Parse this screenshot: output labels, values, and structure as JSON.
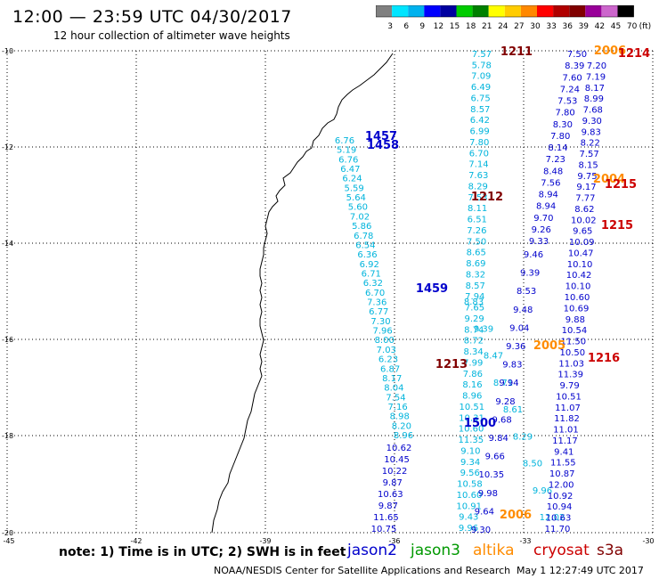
{
  "header": {
    "title": "12:00  —  23:59  UTC  04/30/2017",
    "subtitle": "12 hour collection of altimeter wave heights"
  },
  "colorbar": {
    "labels": [
      "3",
      "6",
      "9",
      "12",
      "15",
      "18",
      "21",
      "24",
      "27",
      "30",
      "33",
      "36",
      "39",
      "42",
      "45",
      "70",
      "(ft)"
    ],
    "colors": [
      "#808080",
      "#00e5ff",
      "#00b2ee",
      "#0000ff",
      "#0000a0",
      "#00cc00",
      "#008000",
      "#ffff00",
      "#ffcc00",
      "#ff8800",
      "#ff0000",
      "#b00000",
      "#800000",
      "#990099",
      "#cc66cc",
      "#000000"
    ]
  },
  "map": {
    "lon_ticks": [
      "-45",
      "-42",
      "-39",
      "-36",
      "-33",
      "-30"
    ],
    "lat_ticks": [
      "-10",
      "-12",
      "-14",
      "-16",
      "-18",
      "-20"
    ]
  },
  "tracks": [
    {
      "color": "#00b4dc",
      "values": [
        "7.57",
        "5.78",
        "7.09",
        "6.49",
        "6.75",
        "8.57",
        "6.42",
        "6.99",
        "7.80",
        "6.70",
        "7.14",
        "7.63",
        "8.29",
        "7.53",
        "8.11",
        "6.51",
        "7.26",
        "7.50",
        "8.65",
        "8.69",
        "8.32",
        "8.57",
        "7.94",
        "7.65",
        "9.29",
        "8.74",
        "8.72",
        "8.34",
        "7.99",
        "7.86",
        "8.16",
        "8.96",
        "10.51",
        "10.31",
        "10.60",
        "11.35",
        "9.10",
        "9.34",
        "9.56",
        "10.58",
        "10.60",
        "10.91",
        "9.43",
        "9.96"
      ]
    },
    {
      "color": "#00b4dc",
      "values": [
        "6.76",
        "5.19",
        "6.76",
        "6.47",
        "6.24",
        "5.59",
        "5.64",
        "5.60",
        "7.02",
        "5.86",
        "6.78",
        "6.54",
        "6.36",
        "6.92",
        "6.71",
        "6.32",
        "6.70",
        "7.36",
        "6.77",
        "7.30",
        "7.96",
        "8.00",
        "7.03",
        "6.23",
        "6.87",
        "8.17",
        "8.04",
        "7.54",
        "7.16",
        "8.98",
        "8.20",
        "8.96"
      ]
    },
    {
      "color": "#00b4dc",
      "values": [
        "8.83",
        "9.39",
        "8.47",
        "8.71",
        "8.61",
        "8.29",
        "8.50",
        "9.96",
        "12.02"
      ]
    },
    {
      "color": "#0000cc",
      "values": [
        "9.46",
        "9.39",
        "8.53",
        "9.48",
        "9.04",
        "9.36",
        "9.83",
        "9.94",
        "9.28",
        "9.68",
        "9.84",
        "9.66",
        "10.35",
        "9.98",
        "9.64",
        "9.30"
      ]
    },
    {
      "color": "#0000cc",
      "values": [
        "10.62",
        "10.45",
        "10.22",
        "9.87",
        "10.63",
        "9.87",
        "11.65",
        "10.75"
      ]
    },
    {
      "color": "#0000cc",
      "values": [
        "7.50",
        "8.39",
        "7.60",
        "7.24",
        "7.53",
        "7.80",
        "8.30",
        "7.80",
        "8.14",
        "7.23",
        "8.48",
        "7.56",
        "8.94",
        "8.94",
        "9.70",
        "9.26",
        "9.33"
      ]
    },
    {
      "color": "#0000cc",
      "values": [
        "7.20",
        "7.19",
        "8.17",
        "8.99",
        "7.68",
        "9.30",
        "9.83",
        "8.22",
        "7.57",
        "8.15",
        "9.75",
        "9.17",
        "7.77",
        "8.62",
        "10.02",
        "9.65",
        "10.09",
        "10.47",
        "10.10",
        "10.42",
        "10.10",
        "10.60",
        "10.69",
        "9.88",
        "10.54",
        "11.50",
        "10.50",
        "11.03",
        "11.39",
        "9.79",
        "10.51",
        "11.07",
        "11.82",
        "11.01",
        "11.17",
        "9.41",
        "11.55",
        "10.87",
        "12.00",
        "10.92",
        "10.94",
        "10.63",
        "11.70"
      ]
    }
  ],
  "tags": [
    {
      "text": "1211",
      "color": "#800000"
    },
    {
      "text": "2006",
      "color": "#ff8c00"
    },
    {
      "text": "1214",
      "color": "#cc0000"
    },
    {
      "text": "1457",
      "color": "#0000cc"
    },
    {
      "text": "1458",
      "color": "#0000cc"
    },
    {
      "text": "1212",
      "color": "#800000"
    },
    {
      "text": "2004",
      "color": "#ff8c00"
    },
    {
      "text": "1215",
      "color": "#cc0000"
    },
    {
      "text": "1215",
      "color": "#cc0000"
    },
    {
      "text": "1459",
      "color": "#0000cc"
    },
    {
      "text": "2005",
      "color": "#ff8c00"
    },
    {
      "text": "1216",
      "color": "#cc0000"
    },
    {
      "text": "1213",
      "color": "#800000"
    },
    {
      "text": "1500",
      "color": "#0000cc"
    },
    {
      "text": "2006",
      "color": "#ff8c00"
    }
  ],
  "footer": {
    "note": "note: 1) Time is in UTC; 2) SWH is in feet",
    "legend": [
      {
        "label": "jason2",
        "color": "#0000cc"
      },
      {
        "label": "jason3",
        "color": "#009900"
      },
      {
        "label": "altika",
        "color": "#ff8c00"
      },
      {
        "label": "cryosat",
        "color": "#cc0000"
      },
      {
        "label": "s3a",
        "color": "#800000"
      }
    ],
    "credit": "NOAA/NESDIS Center for Satellite Applications and Research",
    "timestamp": "May  1 12:27:49 UTC 2017"
  }
}
